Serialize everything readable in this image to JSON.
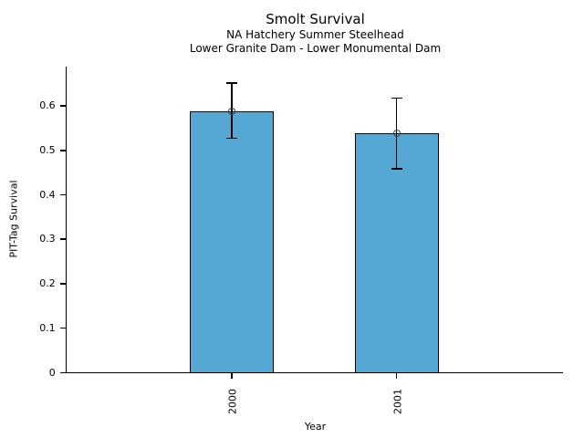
{
  "figure": {
    "background": "#ffffff"
  },
  "chart_data": {
    "type": "bar",
    "title": "Smolt Survival",
    "subtitle_line1": "NA Hatchery Summer Steelhead",
    "subtitle_line2": "Lower Granite Dam - Lower Monumental Dam",
    "xlabel": "Year",
    "ylabel": "PIT-Tag Survival",
    "categories": [
      "2000",
      "2001"
    ],
    "values": [
      0.586,
      0.537
    ],
    "error_low": [
      0.526,
      0.457
    ],
    "error_high": [
      0.65,
      0.616
    ],
    "yticks": [
      0,
      0.1,
      0.2,
      0.3,
      0.4,
      0.5,
      0.6
    ],
    "ytick_labels": [
      "0",
      "0.1",
      "0.2",
      "0.3",
      "0.4",
      "0.5",
      "0.6"
    ],
    "ylim": [
      0,
      0.687
    ],
    "grid": false,
    "legend": false,
    "x_tick_rotation": -90,
    "bar_color": "#56A8D4",
    "bar_edge_color": "#000000",
    "error_color": "#000000",
    "marker": "open-circle",
    "marker_color": "#404040"
  }
}
